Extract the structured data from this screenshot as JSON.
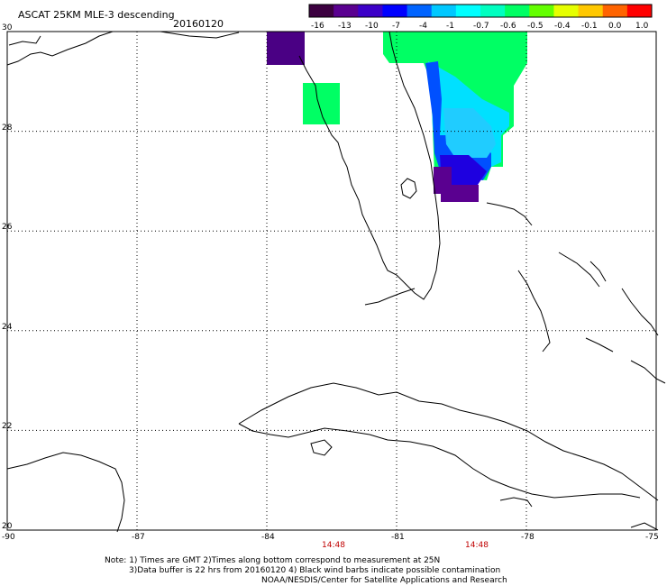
{
  "header": {
    "title": "ASCAT 25KM MLE-3 descending",
    "date": "20160120"
  },
  "colorbar": {
    "labels": [
      "-16",
      "-13",
      "-10",
      "-7",
      "-4",
      "-1",
      "-0.7",
      "-0.6",
      "-0.5",
      "-0.4",
      "-0.1",
      "0.0",
      "1.0"
    ],
    "colors": [
      "#3c0040",
      "#5a0090",
      "#3c00c8",
      "#0000ff",
      "#0064ff",
      "#00c8ff",
      "#00ffff",
      "#00ffc0",
      "#00ff64",
      "#64ff00",
      "#e6ff00",
      "#ffc800",
      "#ff6400",
      "#ff0000"
    ]
  },
  "axes": {
    "x_labels": [
      "-90",
      "-87",
      "-84",
      "-81",
      "-78",
      "-75"
    ],
    "y_labels": [
      "30",
      "28",
      "26",
      "24",
      "22",
      "20"
    ]
  },
  "times": [
    "14:48",
    "14:48"
  ],
  "notes": {
    "line1": "Note: 1) Times are GMT 2)Times along bottom correspond to measurement at 25N",
    "line2": "3)Data buffer is 22 hrs from 20160120 4) Black wind barbs indicate possible contamination",
    "line3": "NOAA/NESDIS/Center for Satellite Applications and Research"
  }
}
